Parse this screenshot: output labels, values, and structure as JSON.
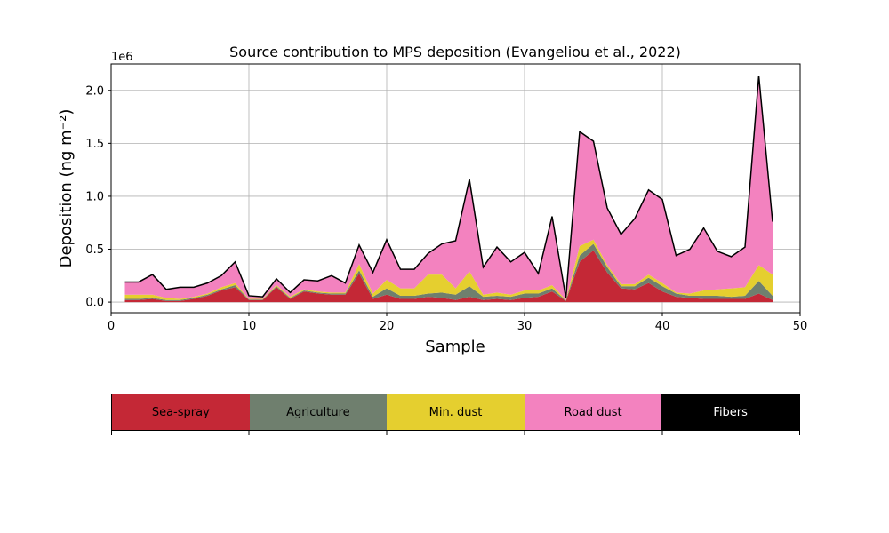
{
  "chart_data": {
    "type": "area",
    "stacked": true,
    "title": "Source contribution to MPS deposition (Evangeliou et al., 2022)",
    "xlabel": "Sample",
    "ylabel": "Deposition (ng m⁻²)",
    "y_multiplier_label": "1e6",
    "xlim": [
      0,
      50
    ],
    "ylim": [
      -0.1,
      2.25
    ],
    "x_ticks": [
      0,
      10,
      20,
      30,
      40,
      50
    ],
    "y_ticks": [
      0.0,
      0.5,
      1.0,
      1.5,
      2.0
    ],
    "y_tick_labels": [
      "0.0",
      "0.5",
      "1.0",
      "1.5",
      "2.0"
    ],
    "grid": true,
    "y_unit_note": "values in units of 1e6 ng m⁻²",
    "x": [
      1,
      2,
      3,
      4,
      5,
      6,
      7,
      8,
      9,
      10,
      11,
      12,
      13,
      14,
      15,
      16,
      17,
      18,
      19,
      20,
      21,
      22,
      23,
      24,
      25,
      26,
      27,
      28,
      29,
      30,
      31,
      32,
      33,
      34,
      35,
      36,
      37,
      38,
      39,
      40,
      41,
      42,
      43,
      44,
      45,
      46,
      47,
      48
    ],
    "total": [
      0.19,
      0.19,
      0.26,
      0.12,
      0.14,
      0.14,
      0.18,
      0.25,
      0.38,
      0.06,
      0.05,
      0.22,
      0.09,
      0.21,
      0.2,
      0.25,
      0.18,
      0.54,
      0.28,
      0.59,
      0.31,
      0.31,
      0.46,
      0.55,
      0.58,
      1.16,
      0.33,
      0.52,
      0.38,
      0.47,
      0.27,
      0.81,
      0.04,
      1.61,
      1.52,
      0.89,
      0.64,
      0.79,
      1.06,
      0.97,
      0.44,
      0.5,
      0.7,
      0.48,
      0.43,
      0.52,
      2.14,
      0.76
    ],
    "series": [
      {
        "name": "Sea-spray",
        "color": "#c42836",
        "values": [
          0.02,
          0.02,
          0.03,
          0.01,
          0.01,
          0.03,
          0.06,
          0.11,
          0.14,
          0.02,
          0.02,
          0.14,
          0.03,
          0.1,
          0.08,
          0.07,
          0.07,
          0.27,
          0.03,
          0.07,
          0.03,
          0.03,
          0.05,
          0.04,
          0.02,
          0.05,
          0.02,
          0.03,
          0.02,
          0.04,
          0.05,
          0.1,
          0.01,
          0.38,
          0.49,
          0.28,
          0.13,
          0.12,
          0.18,
          0.1,
          0.05,
          0.04,
          0.03,
          0.03,
          0.03,
          0.03,
          0.08,
          0.02
        ]
      },
      {
        "name": "Agriculture",
        "color": "#6f7f6e",
        "values": [
          0.01,
          0.01,
          0.01,
          0.01,
          0.01,
          0.01,
          0.01,
          0.01,
          0.02,
          0.005,
          0.005,
          0.01,
          0.01,
          0.01,
          0.01,
          0.01,
          0.01,
          0.03,
          0.02,
          0.06,
          0.03,
          0.03,
          0.03,
          0.05,
          0.05,
          0.1,
          0.03,
          0.03,
          0.03,
          0.04,
          0.03,
          0.03,
          0.005,
          0.06,
          0.06,
          0.05,
          0.02,
          0.03,
          0.05,
          0.05,
          0.03,
          0.02,
          0.03,
          0.03,
          0.02,
          0.03,
          0.12,
          0.04
        ]
      },
      {
        "name": "Min. dust",
        "color": "#e5cf2f",
        "values": [
          0.04,
          0.04,
          0.03,
          0.02,
          0.01,
          0.01,
          0.01,
          0.02,
          0.02,
          0.005,
          0.005,
          0.01,
          0.01,
          0.01,
          0.01,
          0.01,
          0.01,
          0.06,
          0.03,
          0.08,
          0.07,
          0.07,
          0.18,
          0.17,
          0.06,
          0.14,
          0.02,
          0.03,
          0.02,
          0.03,
          0.03,
          0.03,
          0.005,
          0.09,
          0.04,
          0.02,
          0.02,
          0.02,
          0.03,
          0.03,
          0.01,
          0.02,
          0.05,
          0.06,
          0.08,
          0.08,
          0.15,
          0.2
        ]
      },
      {
        "name": "Road dust",
        "color": "#f382bf",
        "values": [
          0.12,
          0.12,
          0.19,
          0.08,
          0.11,
          0.09,
          0.1,
          0.11,
          0.2,
          0.03,
          0.015,
          0.06,
          0.04,
          0.09,
          0.1,
          0.16,
          0.09,
          0.18,
          0.2,
          0.38,
          0.18,
          0.18,
          0.2,
          0.29,
          0.45,
          0.87,
          0.26,
          0.43,
          0.31,
          0.36,
          0.16,
          0.65,
          0.015,
          1.08,
          0.93,
          0.54,
          0.47,
          0.62,
          0.8,
          0.79,
          0.35,
          0.42,
          0.59,
          0.36,
          0.3,
          0.38,
          1.79,
          0.5
        ]
      },
      {
        "name": "Fibers",
        "color": "#000000",
        "values": [
          0,
          0,
          0,
          0,
          0,
          0,
          0,
          0,
          0,
          0,
          0,
          0,
          0,
          0,
          0,
          0,
          0,
          0,
          0,
          0,
          0,
          0,
          0,
          0,
          0,
          0,
          0,
          0,
          0,
          0,
          0,
          0,
          0,
          0,
          0,
          0,
          0,
          0,
          0,
          0,
          0,
          0,
          0,
          0,
          0,
          0,
          0,
          0
        ]
      }
    ]
  }
}
